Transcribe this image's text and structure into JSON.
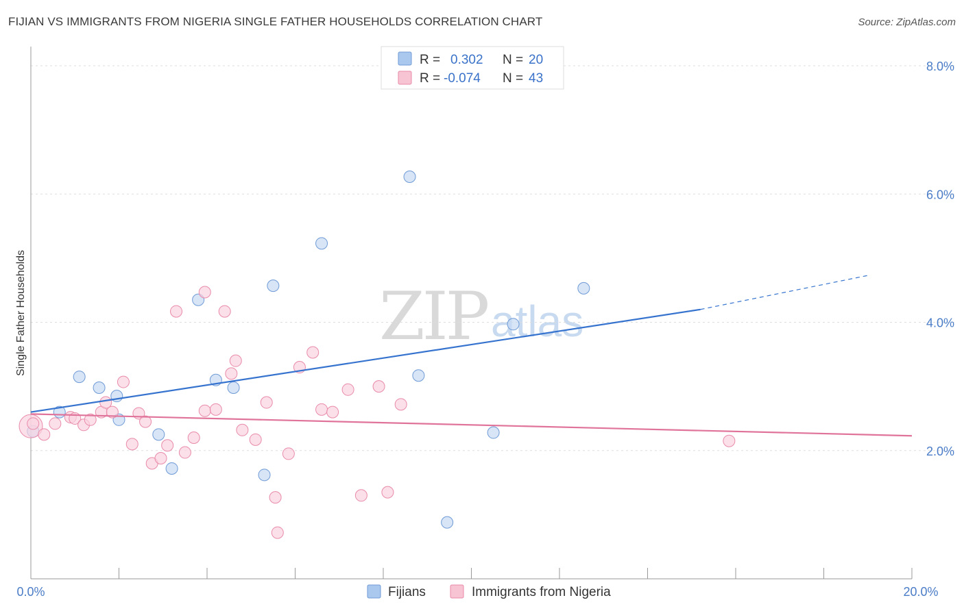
{
  "title": "FIJIAN VS IMMIGRANTS FROM NIGERIA SINGLE FATHER HOUSEHOLDS CORRELATION CHART",
  "source": "Source: ZipAtlas.com",
  "watermark": {
    "zip": "ZIP",
    "atlas": "atlas"
  },
  "legend": {
    "rows": [
      {
        "r_label": "R =",
        "r_value": "0.302",
        "n_label": "N =",
        "n_value": "20",
        "color": "#aac8ee",
        "border": "#6f9ad6"
      },
      {
        "r_label": "R =",
        "r_value": "-0.074",
        "n_label": "N =",
        "n_value": "43",
        "color": "#f7c4d3",
        "border": "#e98aa8"
      }
    ]
  },
  "bottom_legend": [
    {
      "label": "Fijians",
      "color": "#aac8ee",
      "border": "#6f9ad6"
    },
    {
      "label": "Immigrants from Nigeria",
      "color": "#f7c4d3",
      "border": "#e98aa8"
    }
  ],
  "chart_data": {
    "type": "scatter",
    "title": "FIJIAN VS IMMIGRANTS FROM NIGERIA SINGLE FATHER HOUSEHOLDS CORRELATION CHART",
    "xlabel": "",
    "ylabel": "Single Father Households",
    "xlim": [
      0,
      20
    ],
    "ylim": [
      0,
      8
    ],
    "x_tick_labels": [
      "0.0%",
      "20.0%"
    ],
    "y_ticks": [
      2,
      4,
      6,
      8
    ],
    "y_tick_labels": [
      "2.0%",
      "4.0%",
      "6.0%",
      "8.0%"
    ],
    "grid": true,
    "series": [
      {
        "name": "Fijians",
        "color": "#6f9ad6",
        "fill": "#c6daf4",
        "points": [
          [
            0.05,
            2.3
          ],
          [
            1.1,
            3.15
          ],
          [
            1.55,
            2.98
          ],
          [
            1.95,
            2.85
          ],
          [
            2.0,
            2.48
          ],
          [
            0.65,
            2.6
          ],
          [
            2.9,
            2.25
          ],
          [
            3.2,
            1.72
          ],
          [
            3.8,
            4.35
          ],
          [
            4.2,
            3.1
          ],
          [
            4.6,
            2.98
          ],
          [
            5.3,
            1.62
          ],
          [
            5.5,
            4.57
          ],
          [
            6.6,
            5.23
          ],
          [
            8.6,
            6.27
          ],
          [
            8.8,
            3.17
          ],
          [
            9.45,
            0.88
          ],
          [
            10.5,
            2.28
          ],
          [
            10.95,
            3.97
          ],
          [
            12.55,
            4.53
          ]
        ],
        "trend": {
          "x0": 0,
          "y0": 2.6,
          "x1": 15.2,
          "y1": 4.2,
          "dash_to_x": 19.0,
          "dash_to_y": 4.73
        }
      },
      {
        "name": "Immigrants from Nigeria",
        "color": "#e98aa8",
        "fill": "#f9d3df",
        "points": [
          [
            0.0,
            2.38
          ],
          [
            0.3,
            2.25
          ],
          [
            0.55,
            2.42
          ],
          [
            0.9,
            2.52
          ],
          [
            1.0,
            2.5
          ],
          [
            1.2,
            2.4
          ],
          [
            1.35,
            2.48
          ],
          [
            1.6,
            2.6
          ],
          [
            1.7,
            2.75
          ],
          [
            1.85,
            2.6
          ],
          [
            2.1,
            3.07
          ],
          [
            2.3,
            2.1
          ],
          [
            2.45,
            2.58
          ],
          [
            2.6,
            2.45
          ],
          [
            2.75,
            1.8
          ],
          [
            2.95,
            1.88
          ],
          [
            3.1,
            2.08
          ],
          [
            3.3,
            4.17
          ],
          [
            3.5,
            1.97
          ],
          [
            3.7,
            2.2
          ],
          [
            3.95,
            2.62
          ],
          [
            3.95,
            4.47
          ],
          [
            4.2,
            2.64
          ],
          [
            4.4,
            4.17
          ],
          [
            4.55,
            3.2
          ],
          [
            4.65,
            3.4
          ],
          [
            4.8,
            2.32
          ],
          [
            5.1,
            2.17
          ],
          [
            5.35,
            2.75
          ],
          [
            5.55,
            1.27
          ],
          [
            5.6,
            0.72
          ],
          [
            5.85,
            1.95
          ],
          [
            6.1,
            3.3
          ],
          [
            6.4,
            3.53
          ],
          [
            6.6,
            2.64
          ],
          [
            6.85,
            2.6
          ],
          [
            7.2,
            2.95
          ],
          [
            7.5,
            1.3
          ],
          [
            7.9,
            3.0
          ],
          [
            8.1,
            1.35
          ],
          [
            8.4,
            2.72
          ],
          [
            15.85,
            2.15
          ],
          [
            0.05,
            2.42
          ]
        ],
        "trend": {
          "x0": 0,
          "y0": 2.57,
          "x1": 20,
          "y1": 2.23
        }
      }
    ]
  }
}
